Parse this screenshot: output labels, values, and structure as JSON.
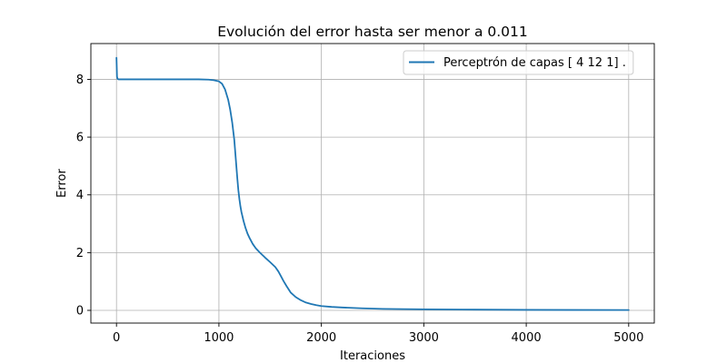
{
  "chart_data": {
    "type": "line",
    "title": "Evolución del error hasta ser menor a 0.011",
    "xlabel": "Iteraciones",
    "ylabel": "Error",
    "xlim": [
      -250,
      5250
    ],
    "ylim": [
      -0.44,
      9.24
    ],
    "xticks": [
      0,
      1000,
      2000,
      3000,
      4000,
      5000
    ],
    "yticks": [
      0,
      2,
      4,
      6,
      8
    ],
    "grid": true,
    "legend_position": "top-right",
    "series": [
      {
        "name": "Perceptrón de capas [ 4 12  1] .",
        "color": "#1f77b4",
        "x": [
          0,
          5,
          10,
          20,
          50,
          200,
          400,
          600,
          800,
          900,
          950,
          1000,
          1030,
          1060,
          1090,
          1110,
          1130,
          1150,
          1170,
          1180,
          1190,
          1200,
          1210,
          1220,
          1240,
          1260,
          1280,
          1300,
          1330,
          1360,
          1400,
          1450,
          1500,
          1550,
          1580,
          1600,
          1630,
          1660,
          1700,
          1750,
          1800,
          1850,
          1900,
          1950,
          2000,
          2100,
          2200,
          2400,
          2600,
          3000,
          3500,
          4000,
          4500,
          5000
        ],
        "y": [
          8.75,
          8.1,
          8.02,
          8.0,
          8.0,
          8.0,
          8.0,
          8.0,
          8.0,
          7.99,
          7.97,
          7.93,
          7.85,
          7.65,
          7.3,
          6.95,
          6.5,
          5.9,
          5.0,
          4.55,
          4.15,
          3.85,
          3.6,
          3.4,
          3.1,
          2.85,
          2.65,
          2.5,
          2.3,
          2.15,
          2.0,
          1.83,
          1.67,
          1.5,
          1.35,
          1.22,
          1.02,
          0.84,
          0.62,
          0.46,
          0.35,
          0.27,
          0.22,
          0.18,
          0.15,
          0.12,
          0.1,
          0.07,
          0.05,
          0.035,
          0.025,
          0.018,
          0.014,
          0.011
        ]
      }
    ]
  }
}
